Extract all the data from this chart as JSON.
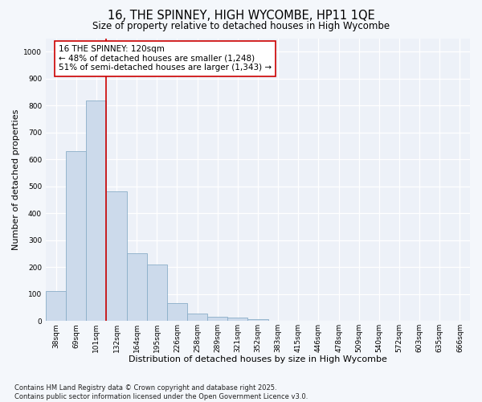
{
  "title1": "16, THE SPINNEY, HIGH WYCOMBE, HP11 1QE",
  "title2": "Size of property relative to detached houses in High Wycombe",
  "xlabel": "Distribution of detached houses by size in High Wycombe",
  "ylabel": "Number of detached properties",
  "categories": [
    "38sqm",
    "69sqm",
    "101sqm",
    "132sqm",
    "164sqm",
    "195sqm",
    "226sqm",
    "258sqm",
    "289sqm",
    "321sqm",
    "352sqm",
    "383sqm",
    "415sqm",
    "446sqm",
    "478sqm",
    "509sqm",
    "540sqm",
    "572sqm",
    "603sqm",
    "635sqm",
    "666sqm"
  ],
  "values": [
    110,
    630,
    820,
    480,
    250,
    210,
    65,
    28,
    15,
    12,
    8,
    0,
    0,
    0,
    0,
    0,
    0,
    0,
    0,
    0,
    0
  ],
  "bar_color": "#ccdaeb",
  "bar_edge_color": "#8aaec8",
  "vline_x": 2.5,
  "vline_color": "#cc0000",
  "annotation_text": "16 THE SPINNEY: 120sqm\n← 48% of detached houses are smaller (1,248)\n51% of semi-detached houses are larger (1,343) →",
  "annotation_box_color": "#ffffff",
  "annotation_box_edge": "#cc0000",
  "ylim": [
    0,
    1050
  ],
  "yticks": [
    0,
    100,
    200,
    300,
    400,
    500,
    600,
    700,
    800,
    900,
    1000
  ],
  "footnote": "Contains HM Land Registry data © Crown copyright and database right 2025.\nContains public sector information licensed under the Open Government Licence v3.0.",
  "bg_color": "#f4f7fb",
  "plot_bg_color": "#edf1f8",
  "grid_color": "#ffffff",
  "title_fontsize": 10.5,
  "subtitle_fontsize": 8.5,
  "axis_label_fontsize": 8,
  "tick_fontsize": 6.5,
  "annotation_fontsize": 7.5,
  "footnote_fontsize": 6
}
